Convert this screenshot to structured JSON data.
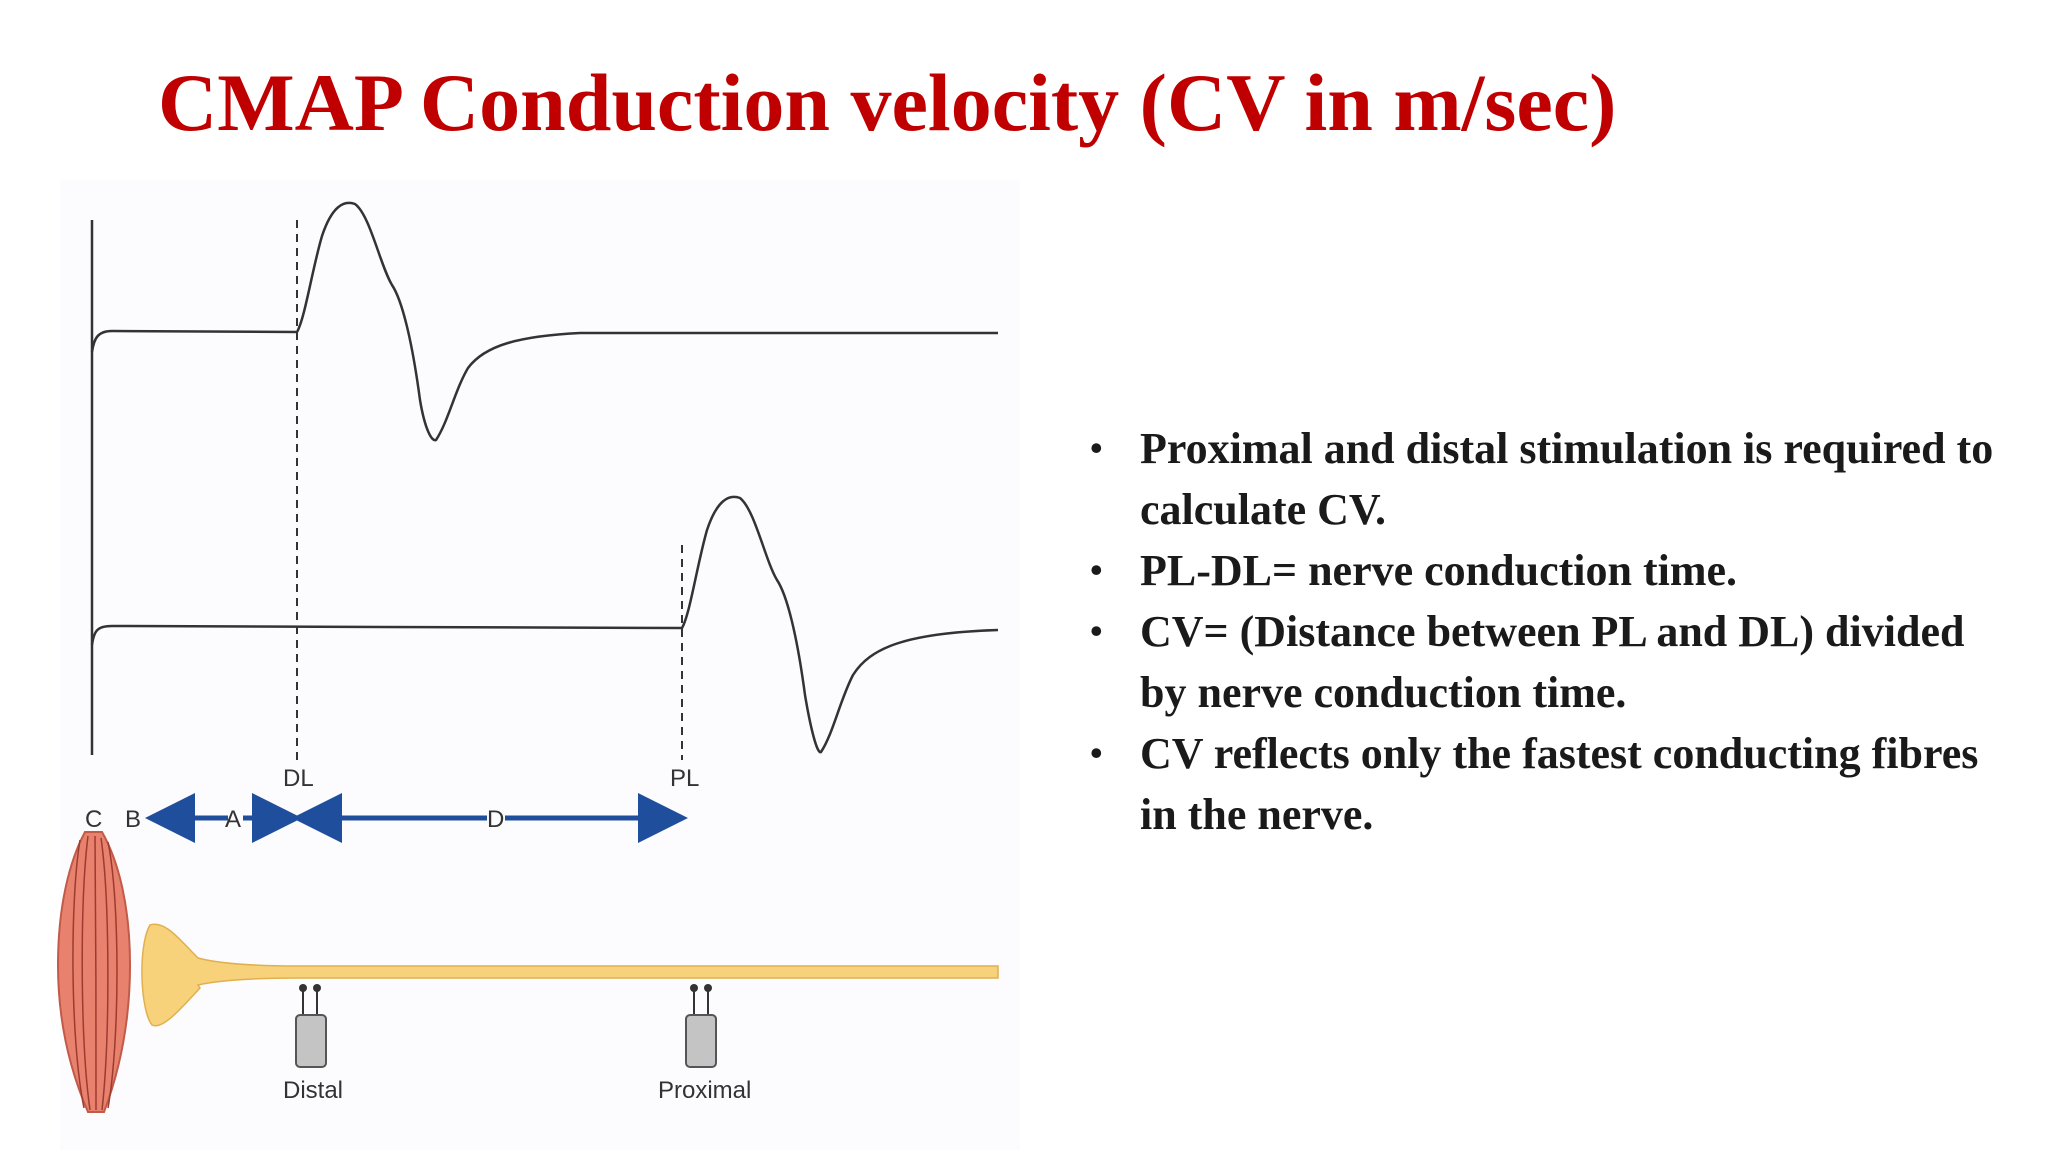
{
  "slide": {
    "title": "CMAP Conduction velocity (CV in m/sec)"
  },
  "figure": {
    "labels": {
      "distal_latency": "DL",
      "proximal_latency": "PL",
      "c": "C",
      "b": "B",
      "a": "A",
      "d": "D",
      "distal": "Distal",
      "proximal": "Proximal"
    },
    "colors": {
      "arrow": "#1f4e9c",
      "nerve": "#f7d27a",
      "muscle": "#e8826f",
      "electrode": "#c4c4c4",
      "trace": "#333333"
    }
  },
  "bullets": [
    "Proximal and distal stimulation is required to calculate CV.",
    "PL-DL= nerve conduction time.",
    "CV= (Distance between PL and DL) divided by nerve conduction time.",
    "CV reflects only the fastest conducting fibres in the nerve."
  ]
}
